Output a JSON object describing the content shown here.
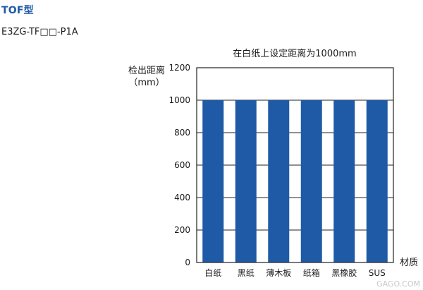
{
  "header": {
    "type_title": "TOF型",
    "model_name": "E3ZG-TF□□-P1A"
  },
  "watermark": "GAGO.COM",
  "colors": {
    "bar": "#1f5aa6",
    "gridline": "#222222",
    "axis": "#222222"
  },
  "chart_data": {
    "type": "bar",
    "title": "在白纸上设定距离为1000mm",
    "ylabel_line1": "检出距离",
    "ylabel_line2": "（mm）",
    "xlabel": "材质",
    "categories": [
      "白纸",
      "黑纸",
      "薄木板",
      "纸箱",
      "黑橡胶",
      "SUS"
    ],
    "values": [
      1000,
      1000,
      1000,
      1000,
      1000,
      1000
    ],
    "ylim": [
      0,
      1200
    ],
    "yticks": [
      0,
      200,
      400,
      600,
      800,
      1000,
      1200
    ],
    "grid": true
  }
}
